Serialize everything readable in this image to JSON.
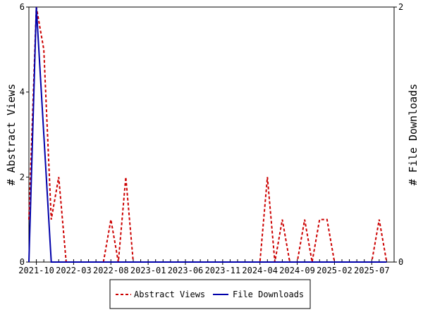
{
  "chart_data": {
    "type": "line",
    "xlabel": "",
    "ylabel": "# Abstract Views",
    "y2label": "# File Downloads",
    "x_tick_labels": [
      "2021-10",
      "2022-03",
      "2022-08",
      "2023-01",
      "2023-06",
      "2023-11",
      "2024-04",
      "2024-09",
      "2025-02",
      "2025-07"
    ],
    "xlim": [
      "2021-09",
      "2025-10"
    ],
    "ylim": [
      0,
      6
    ],
    "y2lim": [
      0,
      2
    ],
    "y_ticks": [
      0,
      2,
      4,
      6
    ],
    "y2_ticks": [
      0,
      2
    ],
    "grid": false,
    "legend_position": "bottom-center",
    "series": [
      {
        "name": "Abstract Views",
        "axis": "left",
        "style": "dashed",
        "color": "#cc0000",
        "x": [
          "2021-09",
          "2021-10",
          "2021-11",
          "2021-12",
          "2022-01",
          "2022-02",
          "2022-03",
          "2022-04",
          "2022-05",
          "2022-06",
          "2022-07",
          "2022-08",
          "2022-09",
          "2022-10",
          "2022-11",
          "2022-12",
          "2023-01",
          "2023-02",
          "2023-03",
          "2023-04",
          "2023-05",
          "2023-06",
          "2023-07",
          "2023-08",
          "2023-09",
          "2023-10",
          "2023-11",
          "2023-12",
          "2024-01",
          "2024-02",
          "2024-03",
          "2024-04",
          "2024-05",
          "2024-06",
          "2024-07",
          "2024-08",
          "2024-09",
          "2024-10",
          "2024-11",
          "2024-12",
          "2025-01",
          "2025-02",
          "2025-03",
          "2025-04",
          "2025-05",
          "2025-06",
          "2025-07",
          "2025-08",
          "2025-09"
        ],
        "values": [
          1,
          6,
          5,
          1,
          2,
          0,
          0,
          0,
          0,
          0,
          0,
          1,
          0,
          2,
          0,
          0,
          0,
          0,
          0,
          0,
          0,
          0,
          0,
          0,
          0,
          0,
          0,
          0,
          0,
          0,
          0,
          0,
          2,
          0,
          1,
          0,
          0,
          1,
          0,
          1,
          1,
          0,
          0,
          0,
          0,
          0,
          0,
          1,
          0
        ]
      },
      {
        "name": "File Downloads",
        "axis": "right",
        "style": "solid",
        "color": "#0000aa",
        "x": [
          "2021-09",
          "2021-10",
          "2021-11",
          "2021-12",
          "2022-01",
          "2022-02",
          "2022-03",
          "2022-04",
          "2022-05",
          "2022-06",
          "2022-07",
          "2022-08",
          "2022-09",
          "2022-10",
          "2022-11",
          "2022-12",
          "2023-01",
          "2023-02",
          "2023-03",
          "2023-04",
          "2023-05",
          "2023-06",
          "2023-07",
          "2023-08",
          "2023-09",
          "2023-10",
          "2023-11",
          "2023-12",
          "2024-01",
          "2024-02",
          "2024-03",
          "2024-04",
          "2024-05",
          "2024-06",
          "2024-07",
          "2024-08",
          "2024-09",
          "2024-10",
          "2024-11",
          "2024-12",
          "2025-01",
          "2025-02",
          "2025-03",
          "2025-04",
          "2025-05",
          "2025-06",
          "2025-07",
          "2025-08",
          "2025-09"
        ],
        "values": [
          0,
          2,
          1,
          0,
          0,
          0,
          0,
          0,
          0,
          0,
          0,
          0,
          0,
          0,
          0,
          0,
          0,
          0,
          0,
          0,
          0,
          0,
          0,
          0,
          0,
          0,
          0,
          0,
          0,
          0,
          0,
          0,
          0,
          0,
          0,
          0,
          0,
          0,
          0,
          0,
          0,
          0,
          0,
          0,
          0,
          0,
          0,
          0,
          0
        ]
      }
    ]
  }
}
